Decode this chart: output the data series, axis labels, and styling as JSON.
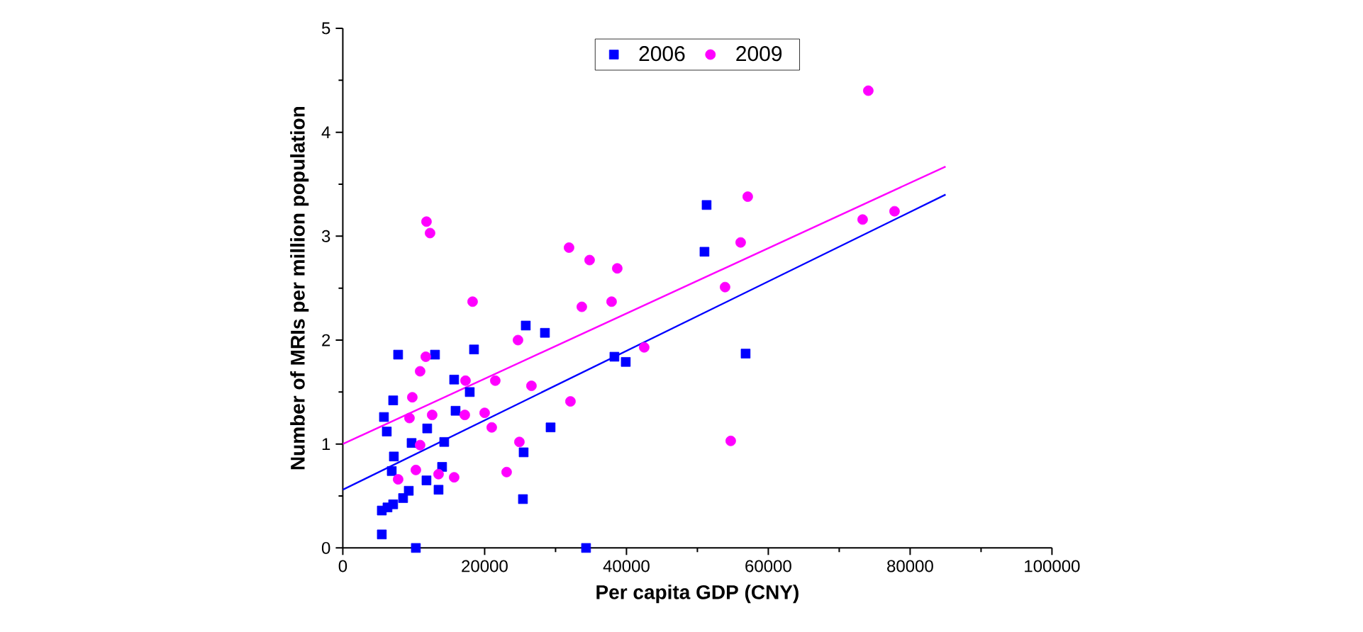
{
  "chart_data": {
    "type": "scatter",
    "xlabel": "Per capita GDP (CNY)",
    "ylabel": "Number of MRIs per million population",
    "xlim": [
      0,
      100000
    ],
    "ylim": [
      0,
      5
    ],
    "xticks": [
      0,
      20000,
      40000,
      60000,
      80000,
      100000
    ],
    "yticks": [
      0,
      1,
      2,
      3,
      4,
      5
    ],
    "legend": "top",
    "grid": false,
    "series": [
      {
        "name": "2006",
        "color": "#0000ff",
        "marker": "square",
        "x": [
          5500,
          10300,
          5500,
          6300,
          7100,
          8500,
          9300,
          11800,
          13500,
          14000,
          6900,
          7200,
          9700,
          14300,
          5800,
          6200,
          7100,
          11900,
          15900,
          15700,
          17900,
          7800,
          13000,
          18500,
          25500,
          25400,
          29300,
          26900,
          25800,
          28500,
          34300,
          38300,
          39900,
          51000,
          51300,
          56800
        ],
        "values": [
          0.13,
          0,
          0.36,
          0.39,
          0.42,
          0.48,
          0.55,
          0.65,
          0.56,
          0.78,
          0.74,
          0.88,
          1.01,
          1.02,
          1.26,
          1.12,
          1.42,
          1.15,
          1.32,
          1.62,
          1.5,
          1.86,
          1.86,
          1.91,
          0.92,
          0.47,
          1.16,
          null,
          2.14,
          2.07,
          0,
          1.84,
          1.79,
          2.85,
          3.3,
          1.87
        ]
      },
      {
        "name": "2009",
        "color": "#ff00ff",
        "marker": "circle",
        "x": [
          11800,
          12300,
          18300,
          11700,
          10900,
          9800,
          9400,
          12600,
          10900,
          10300,
          7800,
          13500,
          15700,
          17300,
          21500,
          17200,
          20000,
          21000,
          23100,
          24900,
          24700,
          26600,
          32100,
          31900,
          34800,
          38700,
          33700,
          37900,
          56100,
          53900,
          42500,
          54700,
          73300,
          77800,
          74100,
          57100
        ],
        "values": [
          3.14,
          3.03,
          2.37,
          1.84,
          1.7,
          1.45,
          1.25,
          1.28,
          0.99,
          0.75,
          0.66,
          0.71,
          0.68,
          1.61,
          1.61,
          1.28,
          1.3,
          1.16,
          0.73,
          1.02,
          2.0,
          1.56,
          1.41,
          2.89,
          2.77,
          2.69,
          2.32,
          2.37,
          2.94,
          2.51,
          1.93,
          1.03,
          3.16,
          3.24,
          4.4,
          3.38
        ]
      },
      {
        "type": "line",
        "color": "#0000ff",
        "marker": "none",
        "x": [
          0,
          85000
        ],
        "values": [
          0.56,
          3.4
        ]
      },
      {
        "type": "line",
        "color": "#ff00ff",
        "marker": "none",
        "x": [
          0,
          85000
        ],
        "values": [
          1.0,
          3.67
        ]
      }
    ]
  }
}
